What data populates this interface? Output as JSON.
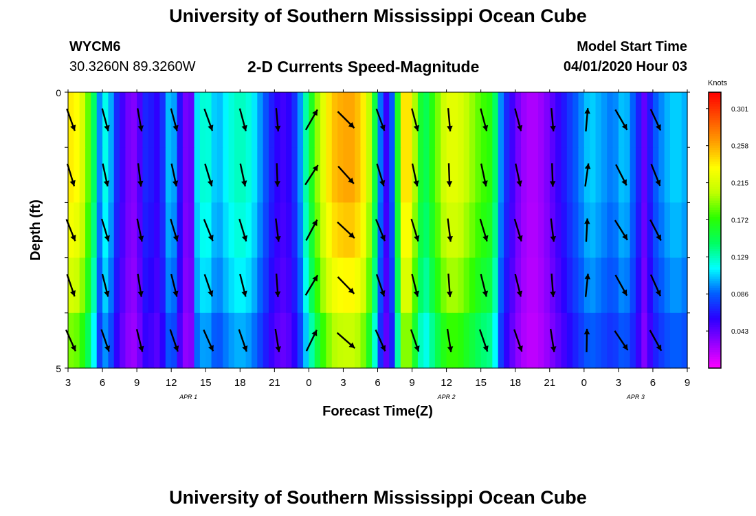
{
  "header": {
    "title_top": "University of Southern Mississippi Ocean Cube",
    "title_bottom": "University of Southern Mississippi Ocean Cube",
    "station_id": "WYCM6",
    "station_coords": "30.3260N 89.3260W",
    "plot_title": "2-D Currents Speed-Magnitude",
    "model_start_label": "Model Start Time",
    "model_start_value": "04/01/2020 Hour 03"
  },
  "chart_data": {
    "type": "heatmap",
    "xlabel": "Forecast Time(Z)",
    "ylabel": "Depth (ft)",
    "x_tick_labels": [
      "3",
      "6",
      "9",
      "12",
      "15",
      "18",
      "21",
      "0",
      "3",
      "6",
      "9",
      "12",
      "15",
      "18",
      "21",
      "0",
      "3",
      "6",
      "9"
    ],
    "x_range_hours": [
      0,
      54
    ],
    "date_labels": [
      {
        "text": "APR 1",
        "at_hour": 10.5
      },
      {
        "text": "APR 2",
        "at_hour": 33
      },
      {
        "text": "APR 3",
        "at_hour": 49.5
      }
    ],
    "y_tick_labels": [
      "0",
      "5"
    ],
    "ylim": [
      0,
      5
    ],
    "colorbar": {
      "unit": "Knots",
      "tick_labels": [
        "0.301",
        "0.258",
        "0.215",
        "0.172",
        "0.129",
        "0.086",
        "0.043"
      ],
      "tick_values": [
        0.301,
        0.258,
        0.215,
        0.172,
        0.129,
        0.086,
        0.043
      ],
      "range": [
        0.0,
        0.32
      ],
      "colors": [
        "#ff00ff",
        "#9400ff",
        "#2a00ff",
        "#0060ff",
        "#00ffff",
        "#00ff60",
        "#2bff00",
        "#c0ff00",
        "#ffff00",
        "#ffa000",
        "#ff5000",
        "#ff0000"
      ]
    },
    "depth_layers": 5,
    "speed_profile": [
      {
        "h": 0,
        "v": 0.24
      },
      {
        "h": 1,
        "v": 0.23
      },
      {
        "h": 2,
        "v": 0.17
      },
      {
        "h": 2.8,
        "v": 0.09
      },
      {
        "h": 3.4,
        "v": 0.13
      },
      {
        "h": 4,
        "v": 0.08
      },
      {
        "h": 4.8,
        "v": 0.05
      },
      {
        "h": 5.6,
        "v": 0.03
      },
      {
        "h": 6.3,
        "v": 0.05
      },
      {
        "h": 7,
        "v": 0.08
      },
      {
        "h": 7.5,
        "v": 0.05
      },
      {
        "h": 8.2,
        "v": 0.07
      },
      {
        "h": 9,
        "v": 0.12
      },
      {
        "h": 9.6,
        "v": 0.07
      },
      {
        "h": 10.2,
        "v": 0.04
      },
      {
        "h": 10.6,
        "v": 0.02
      },
      {
        "h": 11.2,
        "v": 0.11
      },
      {
        "h": 12,
        "v": 0.13
      },
      {
        "h": 13,
        "v": 0.1
      },
      {
        "h": 14,
        "v": 0.12
      },
      {
        "h": 15,
        "v": 0.13
      },
      {
        "h": 16,
        "v": 0.12
      },
      {
        "h": 17,
        "v": 0.09
      },
      {
        "h": 18,
        "v": 0.06
      },
      {
        "h": 19,
        "v": 0.05
      },
      {
        "h": 20,
        "v": 0.08
      },
      {
        "h": 21,
        "v": 0.15
      },
      {
        "h": 22,
        "v": 0.21
      },
      {
        "h": 23,
        "v": 0.25
      },
      {
        "h": 24,
        "v": 0.26
      },
      {
        "h": 25,
        "v": 0.26
      },
      {
        "h": 26,
        "v": 0.23
      },
      {
        "h": 27,
        "v": 0.13
      },
      {
        "h": 27.5,
        "v": 0.05
      },
      {
        "h": 28,
        "v": 0.06
      },
      {
        "h": 28.5,
        "v": 0.11
      },
      {
        "h": 29,
        "v": 0.22
      },
      {
        "h": 29.5,
        "v": 0.26
      },
      {
        "h": 30,
        "v": 0.22
      },
      {
        "h": 31,
        "v": 0.14
      },
      {
        "h": 32,
        "v": 0.18
      },
      {
        "h": 33,
        "v": 0.22
      },
      {
        "h": 34,
        "v": 0.22
      },
      {
        "h": 35,
        "v": 0.2
      },
      {
        "h": 36,
        "v": 0.18
      },
      {
        "h": 37,
        "v": 0.17
      },
      {
        "h": 37.8,
        "v": 0.09
      },
      {
        "h": 38.5,
        "v": 0.06
      },
      {
        "h": 39.5,
        "v": 0.03
      },
      {
        "h": 40.5,
        "v": 0.02
      },
      {
        "h": 41.5,
        "v": 0.03
      },
      {
        "h": 42.5,
        "v": 0.05
      },
      {
        "h": 43.5,
        "v": 0.07
      },
      {
        "h": 44.5,
        "v": 0.09
      },
      {
        "h": 45.5,
        "v": 0.11
      },
      {
        "h": 46.5,
        "v": 0.1
      },
      {
        "h": 47.5,
        "v": 0.09
      },
      {
        "h": 48.5,
        "v": 0.11
      },
      {
        "h": 49.5,
        "v": 0.08
      },
      {
        "h": 50.3,
        "v": 0.04
      },
      {
        "h": 51,
        "v": 0.08
      },
      {
        "h": 52,
        "v": 0.1
      },
      {
        "h": 53,
        "v": 0.11
      },
      {
        "h": 54,
        "v": 0.1
      }
    ],
    "layer_factors": [
      1.0,
      1.0,
      0.96,
      0.9,
      0.8
    ],
    "vector_times_hours": [
      0,
      3,
      6,
      9,
      12,
      15,
      18,
      21,
      24,
      27,
      30,
      33,
      36,
      39,
      42,
      45,
      48,
      51
    ],
    "vector_directions_deg": [
      160,
      165,
      170,
      165,
      160,
      165,
      175,
      30,
      135,
      160,
      165,
      175,
      165,
      165,
      175,
      5,
      150,
      155
    ]
  }
}
